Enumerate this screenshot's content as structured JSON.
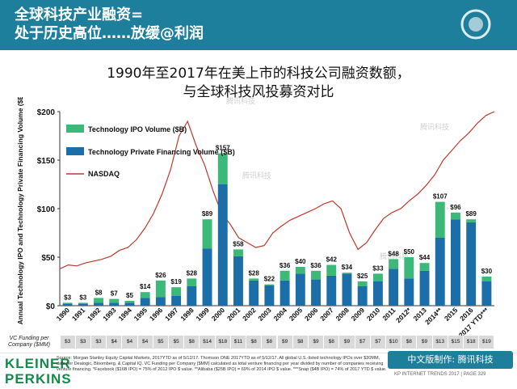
{
  "header": {
    "line1": "全球科技产业融资=",
    "line2": "处于历史高位……放缓@利润"
  },
  "chart_title": {
    "line1": "1990年至2017年在美上市的科技公司融资数额，",
    "line2": "与全球科技风投募资对比"
  },
  "watermark": "腾讯科技",
  "chart_data": {
    "type": "bar",
    "categories": [
      "1990",
      "1991",
      "1992",
      "1993",
      "1994",
      "1995",
      "1996",
      "1997",
      "1998",
      "1999",
      "2000",
      "2001",
      "2002",
      "2003",
      "2004",
      "2005",
      "2006",
      "2007",
      "2008",
      "2009",
      "2010",
      "2011",
      "2012*",
      "2013",
      "2014**",
      "2015",
      "2016",
      "2017 YTD***"
    ],
    "series": [
      {
        "name": "Technology IPO Volume ($B)",
        "color": "#3cb878",
        "values": [
          1,
          1,
          5,
          4,
          2,
          6,
          17,
          9,
          8,
          30,
          32,
          7,
          2,
          1,
          10,
          7,
          9,
          11,
          1,
          5,
          8,
          10,
          22,
          8,
          37,
          7,
          3,
          5
        ]
      },
      {
        "name": "Technology Private Financing Volume ($B)",
        "color": "#1b6ea8",
        "values": [
          2,
          2,
          3,
          3,
          3,
          8,
          9,
          10,
          20,
          59,
          125,
          51,
          26,
          21,
          26,
          33,
          27,
          31,
          33,
          20,
          25,
          38,
          28,
          36,
          70,
          89,
          86,
          25
        ]
      },
      {
        "name": "NASDAQ",
        "color": "#c0392b",
        "type": "line"
      }
    ],
    "totals": [
      "$3",
      "$3",
      "$8",
      "$7",
      "$5",
      "$14",
      "$26",
      "$19",
      "$28",
      "$89",
      "$157",
      "$58",
      "$28",
      "$22",
      "$36",
      "$40",
      "$36",
      "$42",
      "$34",
      "$25",
      "$33",
      "$48",
      "$50",
      "$44",
      "$107",
      "$96",
      "$89",
      "$30"
    ],
    "nasdaq_index_y": [
      38,
      42,
      41,
      44,
      46,
      48,
      51,
      57,
      60,
      68,
      80,
      95,
      115,
      140,
      175,
      190,
      165,
      145,
      118,
      95,
      84,
      70,
      65,
      60,
      62,
      75,
      82,
      88,
      92,
      96,
      100,
      105,
      108,
      100,
      75,
      58,
      65,
      78,
      90,
      96,
      100,
      108,
      115,
      124,
      135,
      150,
      160,
      170,
      178,
      188,
      196,
      200
    ],
    "ylabel": "Annual Technology IPO and Technology Private Financing  Volume ($B)",
    "ylim": [
      0,
      200
    ],
    "yticks": [
      "$0",
      "$50",
      "$100",
      "$150",
      "$200"
    ],
    "vc_funding_label": "VC Funding per Company ($MM)",
    "vc_funding": [
      "$3",
      "$3",
      "$3",
      "$4",
      "$4",
      "$4",
      "$5",
      "$5",
      "$8",
      "$14",
      "$18",
      "$11",
      "$8",
      "$8",
      "$9",
      "$8",
      "$9",
      "$8",
      "$9",
      "$7",
      "$7",
      "$10",
      "$8",
      "$9",
      "$13",
      "$15",
      "$18",
      "$19"
    ],
    "legend_position": "top-left",
    "grid": false
  },
  "footer": {
    "logo_line1": "KLEINER",
    "logo_line2": "PERKINS",
    "source": "Source: Morgan Stanley Equity Capital Markets, 2017YTD as of 5/12/17. Thomson ONE 2017YTD as of 5/12/17. All global U.S.-listed technology IPOs over $30MM, data per Dealogic, Bloomberg, & Capital IQ. VC Funding per Company ($MM) calculated as total venture financing per year divided by number of companies receiving venture financing. *Facebook ($16B IPO) = 75% of 2012 IPO $ value. **Alibaba ($25B IPO) = 69% of 2014 IPO $ value. ***Snap ($4B IPO) = 74% of 2017 YTD $ value.",
    "brand": "中文版制作: 腾讯科技",
    "report": "KP INTERNET TRENDS 2017  |  PAGE 329"
  }
}
